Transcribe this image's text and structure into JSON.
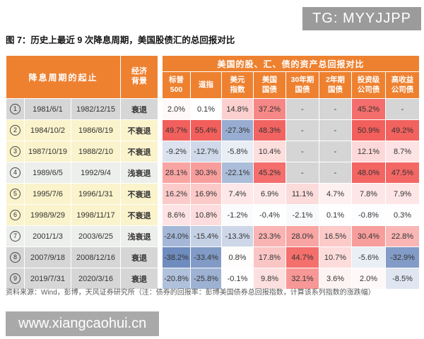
{
  "overlay": {
    "tg_badge": "TG: MYYJJPP",
    "watermark": "www.xiangcaohui.cn"
  },
  "figure": {
    "title": "图 7：历史上最近 9 次降息周期，美国股债汇的总回报对比"
  },
  "table": {
    "header": {
      "cycle_label": "降息周期的起止",
      "economy_label": "经济\n背景",
      "banner": "美国的股、汇、债的资产总回报对比",
      "asset_columns": [
        "标普\n500",
        "道指",
        "美元\n指数",
        "美国\n国债",
        "30年期\n国债",
        "2年期\n国债",
        "投资级\n公司债",
        "高收益\n公司债"
      ]
    },
    "rows": [
      {
        "index": "1",
        "start": "1981/6/1",
        "end": "1982/12/15",
        "economy": "衰退",
        "shade": "gray",
        "values": [
          "2.0%",
          "0.1%",
          "14.8%",
          "37.2%",
          "-",
          "-",
          "45.2%",
          "-"
        ]
      },
      {
        "index": "2",
        "start": "1984/10/2",
        "end": "1986/8/19",
        "economy": "不衰退",
        "shade": "yellow",
        "values": [
          "49.7%",
          "55.4%",
          "-27.3%",
          "48.3%",
          "-",
          "-",
          "50.9%",
          "49.2%"
        ]
      },
      {
        "index": "3",
        "start": "1987/10/19",
        "end": "1988/2/10",
        "economy": "不衰退",
        "shade": "yellow",
        "values": [
          "-9.2%",
          "-12.7%",
          "-5.8%",
          "10.4%",
          "-",
          "-",
          "12.1%",
          "8.7%"
        ]
      },
      {
        "index": "4",
        "start": "1989/6/5",
        "end": "1992/9/4",
        "economy": "浅衰退",
        "shade": "pale",
        "values": [
          "28.1%",
          "30.3%",
          "-22.1%",
          "45.2%",
          "-",
          "-",
          "48.0%",
          "47.5%"
        ]
      },
      {
        "index": "5",
        "start": "1995/7/6",
        "end": "1996/1/31",
        "economy": "不衰退",
        "shade": "yellow",
        "values": [
          "16.2%",
          "16.9%",
          "7.4%",
          "6.9%",
          "11.1%",
          "4.7%",
          "7.8%",
          "7.9%"
        ]
      },
      {
        "index": "6",
        "start": "1998/9/29",
        "end": "1998/11/17",
        "economy": "不衰退",
        "shade": "yellow",
        "values": [
          "8.6%",
          "10.8%",
          "-1.2%",
          "-0.4%",
          "-2.1%",
          "0.1%",
          "-0.8%",
          "0.3%"
        ]
      },
      {
        "index": "7",
        "start": "2001/1/3",
        "end": "2003/6/25",
        "economy": "浅衰退",
        "shade": "pale",
        "values": [
          "-24.0%",
          "-15.4%",
          "-13.3%",
          "23.3%",
          "28.0%",
          "16.5%",
          "30.4%",
          "22.8%"
        ]
      },
      {
        "index": "8",
        "start": "2007/9/18",
        "end": "2008/12/16",
        "economy": "衰退",
        "shade": "gray",
        "values": [
          "-38.2%",
          "-33.4%",
          "0.8%",
          "17.8%",
          "44.7%",
          "10.7%",
          "-5.6%",
          "-32.9%"
        ]
      },
      {
        "index": "9",
        "start": "2019/7/31",
        "end": "2020/3/16",
        "economy": "衰退",
        "shade": "gray",
        "values": [
          "-20.8%",
          "-25.8%",
          "-0.1%",
          "9.8%",
          "32.1%",
          "3.6%",
          "2.0%",
          "-8.5%"
        ]
      }
    ]
  },
  "footnote": "资料来源：Wind，彭博，天风证券研究所（注：债券的回报率：彭博美国债券总回报指数，计算该系列指数的涨跌幅）",
  "colors": {
    "header_orange": "#ee8130",
    "row_gray": "#d6d6d6",
    "row_yellow": "#faf3cc",
    "row_pale": "#edefec",
    "dash_gray": "#d5d5d5",
    "positive_full": "#f25f5c",
    "negative_full": "#4269aa",
    "value_scale_max_percent": 50
  }
}
